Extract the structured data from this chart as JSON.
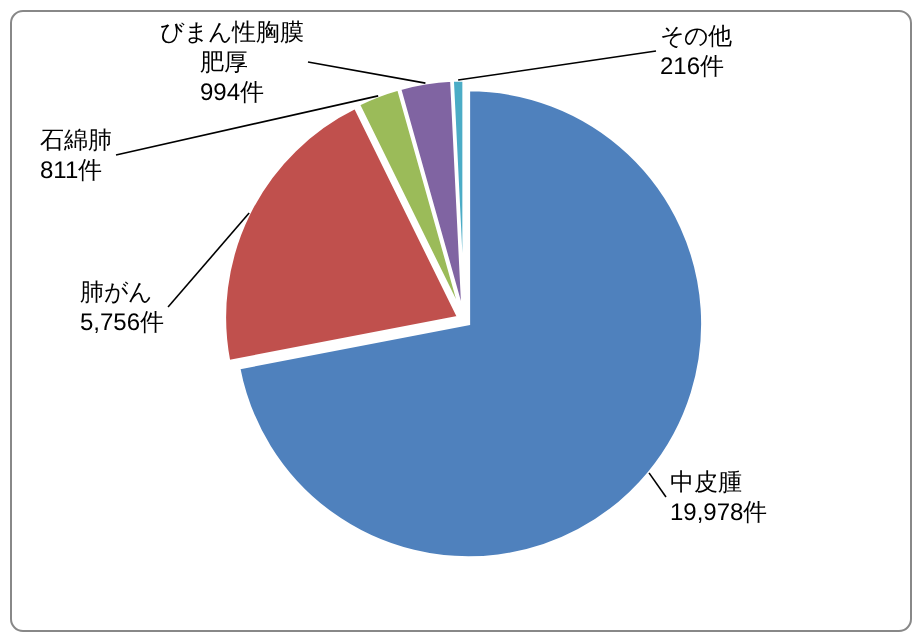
{
  "chart_data": {
    "type": "pie",
    "categories": [
      "中皮腫",
      "肺がん",
      "石綿肺",
      "びまん性胸膜肥厚",
      "その他"
    ],
    "values": [
      19978,
      5756,
      811,
      994,
      216
    ],
    "value_labels": [
      "19,978件",
      "5,756件",
      "811件",
      "994件",
      "216件"
    ],
    "colors": [
      "#4f81bd",
      "#c0504d",
      "#9bbb59",
      "#8064a2",
      "#4bacc6"
    ],
    "legend": false
  }
}
